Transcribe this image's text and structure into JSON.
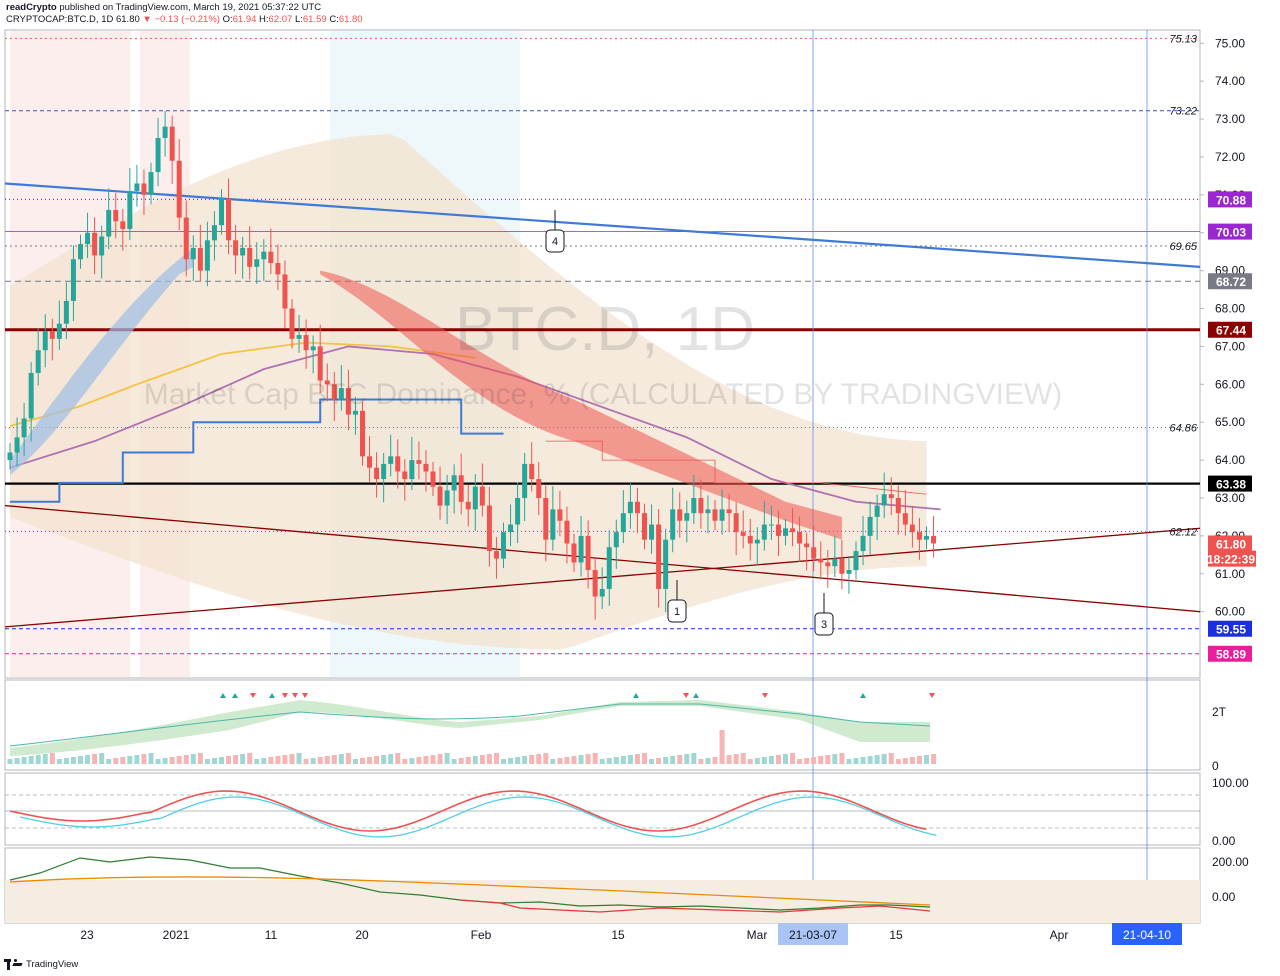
{
  "header": {
    "publisher": "readCrypto",
    "published_text": "published on TradingView.com, March 19, 2021 05:37:22 UTC",
    "symbol": "CRYPTOCAP:BTC.D, 1D",
    "last": "61.80",
    "change": "▼ −0.13 (−0.21%)",
    "open_label": "O:",
    "open": "61.94",
    "high_label": "H:",
    "high": "62.07",
    "low_label": "L:",
    "low": "61.59",
    "close_label": "C:",
    "close": "61.80"
  },
  "watermark": {
    "title": "BTC.D, 1D",
    "subtitle": "Market Cap BTC Dominance, % (CALCULATED BY TRADINGVIEW)"
  },
  "footer": {
    "brand": "TradingView"
  },
  "colors": {
    "up": "#26a69a",
    "down": "#ef5350",
    "trend_blue": "#3f7ad6",
    "dark_red": "#8b0000",
    "ma_purple": "#b071b0",
    "ma_yellow": "#f5c342",
    "cloud_beige": "#f1e3cf",
    "label_purple": "#9c27d0",
    "label_blue": "#1c2fe0",
    "label_pink": "#e91e9c",
    "label_grey": "#787b86",
    "label_black": "#000000"
  },
  "chart_data": {
    "type": "candlestick",
    "title": "BTC.D, 1D",
    "subtitle": "Market Cap BTC Dominance, % (CALCULATED BY TRADINGVIEW)",
    "xlabel": "",
    "ylabel": "",
    "ylim": [
      58.25,
      75.35
    ],
    "y_ticks": [
      "75.00",
      "74.00",
      "73.00",
      "72.00",
      "71.00",
      "70.00",
      "69.00",
      "68.00",
      "67.00",
      "66.00",
      "65.00",
      "64.00",
      "63.00",
      "62.00",
      "61.00",
      "60.00"
    ],
    "x_ticks": [
      "23",
      "2021",
      "11",
      "20",
      "Feb",
      "15",
      "Mar",
      "15",
      "Apr"
    ],
    "x_axis_badges": [
      "21-03-07",
      "21-04-10"
    ],
    "price_badges": [
      {
        "text": "70.88",
        "color": "#9c27d0",
        "value": 70.88
      },
      {
        "text": "70.03",
        "color": "#9c27d0",
        "value": 70.03
      },
      {
        "text": "68.72",
        "color": "#787b86",
        "value": 68.72
      },
      {
        "text": "67.44",
        "color": "#8b0000",
        "value": 67.44
      },
      {
        "text": "63.38",
        "color": "#000000",
        "value": 63.38
      },
      {
        "text": "61.80",
        "color": "#ef5350",
        "value": 61.8
      },
      {
        "text": "18:22:39",
        "color": "#ef5350",
        "value": 61.4
      },
      {
        "text": "59.55",
        "color": "#1c2fe0",
        "value": 59.55
      },
      {
        "text": "58.89",
        "color": "#e91e9c",
        "value": 58.89
      }
    ],
    "level_labels": [
      {
        "text": "75.13",
        "value": 75.13
      },
      {
        "text": "73.22",
        "value": 73.22
      },
      {
        "text": "69.65",
        "value": 69.65
      },
      {
        "text": "64.86",
        "value": 64.86
      },
      {
        "text": "62.12",
        "value": 62.12
      }
    ],
    "callouts": [
      "4",
      "1",
      "3"
    ],
    "closes": [
      64.2,
      64.6,
      65.1,
      66.3,
      66.9,
      67.4,
      67.2,
      67.6,
      68.2,
      69.3,
      69.7,
      70.0,
      69.4,
      69.9,
      70.6,
      70.3,
      70.1,
      71.1,
      71.3,
      71.0,
      71.6,
      72.5,
      72.8,
      71.9,
      70.4,
      69.3,
      69.6,
      69.0,
      69.8,
      70.2,
      70.9,
      69.8,
      69.4,
      69.6,
      69.1,
      69.3,
      69.5,
      69.2,
      68.9,
      68.0,
      67.2,
      67.3,
      66.9,
      67.0,
      66.1,
      66.0,
      65.6,
      65.9,
      65.2,
      65.3,
      64.1,
      63.8,
      63.5,
      63.9,
      64.1,
      63.7,
      63.5,
      64.0,
      63.9,
      63.7,
      63.3,
      62.8,
      63.2,
      63.6,
      62.9,
      62.7,
      63.3,
      62.8,
      61.6,
      61.4,
      62.1,
      62.3,
      63.0,
      63.9,
      63.5,
      63.0,
      61.9,
      62.7,
      62.4,
      61.8,
      61.3,
      62.0,
      61.1,
      60.4,
      60.6,
      61.7,
      62.1,
      62.6,
      62.9,
      62.6,
      61.9,
      62.3,
      60.6,
      61.9,
      62.7,
      62.4,
      62.6,
      63.0,
      62.6,
      62.7,
      62.4,
      62.7,
      62.6,
      62.1,
      62.0,
      61.8,
      61.9,
      62.3,
      62.3,
      62.0,
      62.2,
      62.1,
      61.8,
      61.7,
      61.4,
      61.3,
      61.2,
      61.4,
      61.0,
      61.1,
      61.6,
      62.0,
      62.5,
      62.8,
      63.1,
      63.0,
      62.6,
      62.3,
      62.1,
      61.9,
      62.0,
      61.8
    ],
    "bands": {
      "upper_start": 68.6,
      "upper_peak": 72.6,
      "upper_end": 64.5,
      "lower_start": 62.5,
      "lower_min": 59.0,
      "lower_end": 61.2
    },
    "ma_purple": [
      [
        0,
        63.8
      ],
      [
        10,
        64.5
      ],
      [
        20,
        65.4
      ],
      [
        30,
        66.4
      ],
      [
        40,
        67.0
      ],
      [
        50,
        66.8
      ],
      [
        60,
        66.2
      ],
      [
        70,
        65.4
      ],
      [
        80,
        64.6
      ],
      [
        90,
        63.5
      ],
      [
        100,
        62.9
      ],
      [
        110,
        62.7
      ]
    ],
    "ma_yellow": [
      [
        0,
        64.9
      ],
      [
        8,
        65.4
      ],
      [
        15,
        66.0
      ],
      [
        25,
        66.8
      ],
      [
        35,
        67.1
      ],
      [
        45,
        67.0
      ],
      [
        55,
        66.7
      ]
    ],
    "trendline_blue": {
      "from": [
        0,
        71.3
      ],
      "to": [
        158,
        69.1
      ]
    },
    "trendline_red_down": {
      "from": [
        0,
        62.8
      ],
      "to": [
        158,
        60.0
      ]
    },
    "trendline_red_up": {
      "from": [
        0,
        59.6
      ],
      "to": [
        158,
        62.2
      ]
    },
    "panels": {
      "volume": {
        "ticks": [
          "2T",
          "0"
        ]
      },
      "oscillator": {
        "ticks": [
          "100.00",
          "0.00"
        ]
      },
      "cci": {
        "ticks": [
          "200.00",
          "0.00"
        ]
      }
    }
  }
}
